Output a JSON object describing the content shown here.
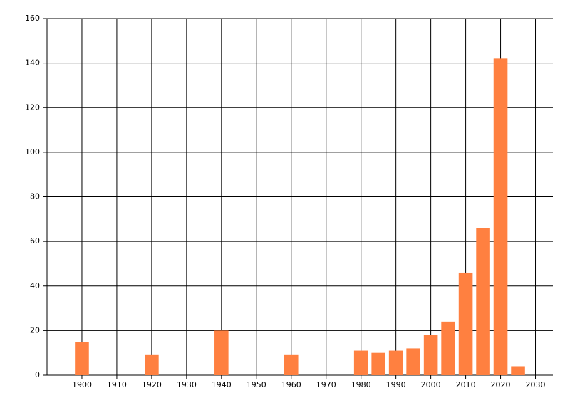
{
  "chart_data": {
    "type": "bar",
    "x": [
      1900,
      1920,
      1940,
      1960,
      1980,
      1985,
      1990,
      1995,
      2000,
      2005,
      2010,
      2015,
      2020,
      2025
    ],
    "values": [
      15,
      9,
      20,
      9,
      11,
      10,
      11,
      12,
      18,
      24,
      46,
      66,
      142,
      4
    ],
    "color": "#ff8040",
    "xlim": [
      1890,
      2035
    ],
    "xticks": [
      1900,
      1910,
      1920,
      1930,
      1940,
      1950,
      1960,
      1970,
      1980,
      1990,
      2000,
      2010,
      2020,
      2030
    ],
    "ylim": [
      0,
      160
    ],
    "yticks": [
      0,
      20,
      40,
      60,
      80,
      100,
      120,
      140,
      160
    ],
    "grid": true
  }
}
